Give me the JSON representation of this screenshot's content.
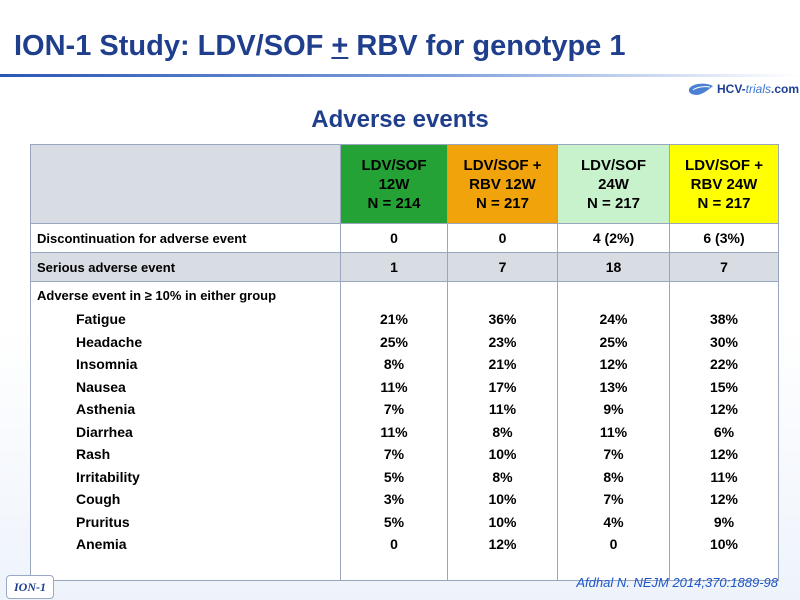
{
  "title": {
    "before": "ION-1 Study: LDV/SOF ",
    "plus": "+",
    "after": " RBV for genotype 1"
  },
  "logo": {
    "prefix": "HCV-",
    "highlight": "trials",
    "suffix": ".com",
    "icon": "liver-logo-icon"
  },
  "subtitle": "Adverse events",
  "colors": {
    "col1": "#24a235",
    "col2": "#f0a30a",
    "col3": "#c8f2cc",
    "col4": "#ffff00",
    "title": "#1f3e8c"
  },
  "table": {
    "headers": [
      [
        "LDV/SOF",
        "12W",
        "N = 214"
      ],
      [
        "LDV/SOF +",
        "RBV 12W",
        "N = 217"
      ],
      [
        "LDV/SOF",
        "24W",
        "N = 217"
      ],
      [
        "LDV/SOF +",
        "RBV 24W",
        "N = 217"
      ]
    ],
    "discontinuation": {
      "label": "Discontinuation for adverse event",
      "values": [
        "0",
        "0",
        "4 (2%)",
        "6 (3%)"
      ]
    },
    "serious": {
      "label": "Serious adverse event",
      "values": [
        "1",
        "7",
        "18",
        "7"
      ]
    },
    "ae_header": "Adverse event in ≥ 10% in either group",
    "events": [
      {
        "name": "Fatigue",
        "values": [
          "21%",
          "36%",
          "24%",
          "38%"
        ]
      },
      {
        "name": "Headache",
        "values": [
          "25%",
          "23%",
          "25%",
          "30%"
        ]
      },
      {
        "name": "Insomnia",
        "values": [
          "8%",
          "21%",
          "12%",
          "22%"
        ]
      },
      {
        "name": "Nausea",
        "values": [
          "11%",
          "17%",
          "13%",
          "15%"
        ]
      },
      {
        "name": "Asthenia",
        "values": [
          "7%",
          "11%",
          "9%",
          "12%"
        ]
      },
      {
        "name": "Diarrhea",
        "values": [
          "11%",
          "8%",
          "11%",
          "6%"
        ]
      },
      {
        "name": "Rash",
        "values": [
          "7%",
          "10%",
          "7%",
          "12%"
        ]
      },
      {
        "name": "Irritability",
        "values": [
          "5%",
          "8%",
          "8%",
          "11%"
        ]
      },
      {
        "name": "Cough",
        "values": [
          "3%",
          "10%",
          "7%",
          "12%"
        ]
      },
      {
        "name": "Pruritus",
        "values": [
          "5%",
          "10%",
          "4%",
          "9%"
        ]
      },
      {
        "name": "Anemia",
        "values": [
          "0",
          "12%",
          "0",
          "10%"
        ]
      }
    ]
  },
  "footer": {
    "tag": "ION-1",
    "citation": "Afdhal N. NEJM 2014;370:1889-98"
  }
}
